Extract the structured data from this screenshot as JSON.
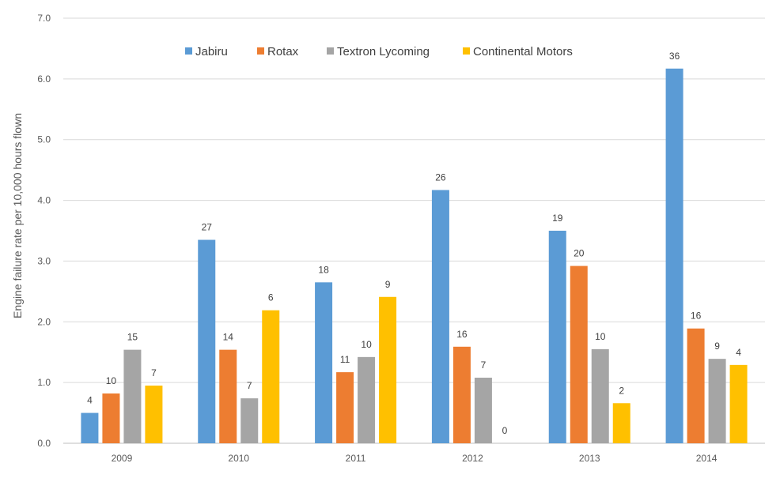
{
  "chart_data": {
    "type": "bar",
    "categories": [
      "2009",
      "2010",
      "2011",
      "2012",
      "2013",
      "2014"
    ],
    "series": [
      {
        "name": "Jabiru",
        "color": "#5B9BD5",
        "values": [
          0.5,
          3.35,
          2.65,
          4.17,
          3.5,
          6.17
        ],
        "labels": [
          "4",
          "27",
          "18",
          "26",
          "19",
          "36"
        ]
      },
      {
        "name": "Rotax",
        "color": "#ED7D31",
        "values": [
          0.82,
          1.54,
          1.17,
          1.59,
          2.92,
          1.89
        ],
        "labels": [
          "10",
          "14",
          "11",
          "16",
          "20",
          "16"
        ]
      },
      {
        "name": "Textron Lycoming",
        "color": "#A5A5A5",
        "values": [
          1.54,
          0.74,
          1.42,
          1.08,
          1.55,
          1.39
        ],
        "labels": [
          "15",
          "7",
          "10",
          "7",
          "10",
          "9"
        ]
      },
      {
        "name": "Continental Motors",
        "color": "#FFC000",
        "values": [
          0.95,
          2.19,
          2.41,
          0,
          0.66,
          1.29
        ],
        "labels": [
          "7",
          "6",
          "9",
          "0",
          "2",
          "4"
        ]
      }
    ],
    "ylabel": "Engine failure rate per 10,000 hours flown",
    "xlabel": "",
    "ylim": [
      0,
      7
    ],
    "yticks": [
      "0.0",
      "1.0",
      "2.0",
      "3.0",
      "4.0",
      "5.0",
      "6.0",
      "7.0"
    ],
    "grid": true,
    "legend": "top"
  }
}
